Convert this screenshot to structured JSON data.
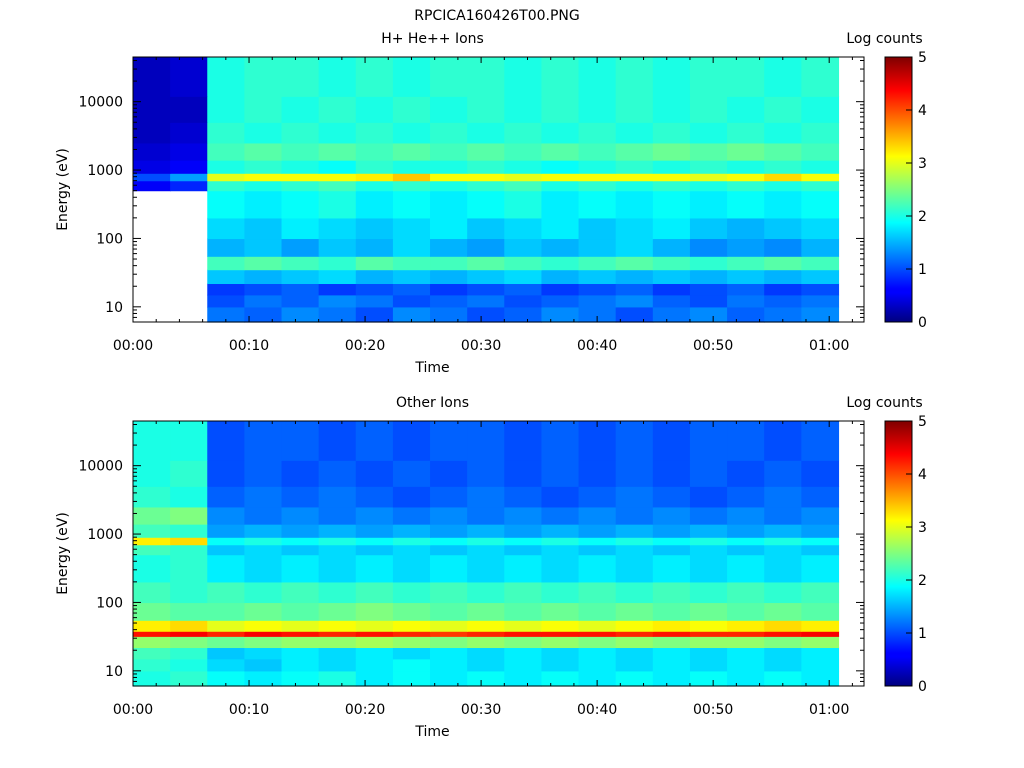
{
  "figure_title": "RPCICA160426T00.PNG",
  "colormap": "jet",
  "chart_data": [
    {
      "type": "heatmap",
      "title": "H+ He++ Ions",
      "xlabel": "Time",
      "ylabel": "Energy (eV)",
      "yscale": "log",
      "ylim": [
        6,
        45000
      ],
      "xlim": [
        "00:00",
        "01:03"
      ],
      "x_ticks": [
        "00:00",
        "00:10",
        "00:20",
        "00:30",
        "00:40",
        "00:50",
        "01:00"
      ],
      "y_ticks": [
        "10",
        "100",
        "1000",
        "10000"
      ],
      "colorbar": {
        "label": "Log counts",
        "range": [
          0,
          5
        ],
        "ticks": [
          "0",
          "1",
          "2",
          "3",
          "4",
          "5"
        ]
      },
      "time_bins_min": [
        0,
        3.2,
        6.4,
        9.6,
        12.8,
        16,
        19.2,
        22.4,
        25.6,
        28.8,
        32,
        35.2,
        38.4,
        41.6,
        44.8,
        48,
        51.2,
        54.4,
        57.6,
        60.8
      ],
      "energy_bins_ev": [
        6,
        10,
        15,
        22,
        35,
        55,
        100,
        200,
        500,
        700,
        900,
        1400,
        2500,
        5000,
        12000,
        45000
      ],
      "log_counts": [
        [
          null,
          null,
          1.2,
          1.1,
          1.3,
          1.2,
          1.0,
          1.3,
          1.2,
          1.0,
          1.1,
          1.3,
          1.2,
          1.0,
          1.2,
          1.3,
          1.1,
          1.2,
          1.3
        ],
        [
          null,
          null,
          1.0,
          1.2,
          1.1,
          1.3,
          1.2,
          1.0,
          1.1,
          1.2,
          1.0,
          1.1,
          1.2,
          1.3,
          1.1,
          1.0,
          1.2,
          1.1,
          1.2
        ],
        [
          null,
          null,
          0.9,
          1.0,
          1.1,
          0.9,
          1.0,
          1.1,
          0.9,
          1.0,
          1.1,
          0.9,
          1.0,
          1.1,
          0.9,
          1.0,
          1.1,
          0.9,
          1.0
        ],
        [
          null,
          null,
          1.6,
          1.5,
          1.6,
          1.7,
          1.5,
          1.6,
          1.5,
          1.6,
          1.7,
          1.5,
          1.6,
          1.5,
          1.6,
          1.5,
          1.6,
          1.5,
          1.6
        ],
        [
          null,
          null,
          2.2,
          2.3,
          2.2,
          2.1,
          2.3,
          2.2,
          2.2,
          2.3,
          2.2,
          2.1,
          2.2,
          2.3,
          2.2,
          2.1,
          2.2,
          2.3,
          2.2
        ],
        [
          null,
          null,
          1.5,
          1.6,
          1.4,
          1.6,
          1.5,
          1.7,
          1.5,
          1.4,
          1.6,
          1.5,
          1.6,
          1.7,
          1.5,
          1.3,
          1.4,
          1.3,
          1.5
        ],
        [
          null,
          null,
          1.7,
          1.6,
          1.8,
          1.7,
          1.6,
          1.7,
          1.8,
          1.6,
          1.7,
          1.8,
          1.6,
          1.7,
          1.8,
          1.6,
          1.5,
          1.6,
          1.7
        ],
        [
          null,
          null,
          1.9,
          1.8,
          1.9,
          2.0,
          1.8,
          1.9,
          1.8,
          1.9,
          2.0,
          1.8,
          1.9,
          1.8,
          1.9,
          1.8,
          1.9,
          1.8,
          1.9
        ],
        [
          0.6,
          0.8,
          2.1,
          2.0,
          2.1,
          2.2,
          2.0,
          2.1,
          2.0,
          2.1,
          2.2,
          2.0,
          2.1,
          2.0,
          2.1,
          2.0,
          2.1,
          2.0,
          2.1
        ],
        [
          1.0,
          1.4,
          3.0,
          3.1,
          3.1,
          3.1,
          3.2,
          3.4,
          3.1,
          3.1,
          3.0,
          3.1,
          3.1,
          3.1,
          3.1,
          3.0,
          3.1,
          3.3,
          3.1
        ],
        [
          0.5,
          0.6,
          2.0,
          2.1,
          2.0,
          1.9,
          2.1,
          2.0,
          2.0,
          2.1,
          2.0,
          1.9,
          2.0,
          2.1,
          2.0,
          2.1,
          2.0,
          2.1,
          2.0
        ],
        [
          0.4,
          0.5,
          2.2,
          2.3,
          2.2,
          2.3,
          2.2,
          2.3,
          2.2,
          2.3,
          2.2,
          2.3,
          2.2,
          2.3,
          2.4,
          2.3,
          2.4,
          2.3,
          2.2
        ],
        [
          0.3,
          0.4,
          2.1,
          2.0,
          2.1,
          2.0,
          2.1,
          2.0,
          2.1,
          2.0,
          2.1,
          2.0,
          2.1,
          2.0,
          2.1,
          2.0,
          2.1,
          2.0,
          2.1
        ],
        [
          0.3,
          0.3,
          2.0,
          2.1,
          2.0,
          2.1,
          2.0,
          2.1,
          2.0,
          2.1,
          2.0,
          2.1,
          2.0,
          2.1,
          2.0,
          2.1,
          2.0,
          2.1,
          2.0
        ],
        [
          0.3,
          0.4,
          2.0,
          2.1,
          2.1,
          2.0,
          2.1,
          2.0,
          2.1,
          2.1,
          2.0,
          2.1,
          2.0,
          2.1,
          2.0,
          2.1,
          2.1,
          2.0,
          2.1
        ]
      ]
    },
    {
      "type": "heatmap",
      "title": "Other Ions",
      "xlabel": "Time",
      "ylabel": "Energy (eV)",
      "yscale": "log",
      "ylim": [
        6,
        45000
      ],
      "xlim": [
        "00:00",
        "01:03"
      ],
      "x_ticks": [
        "00:00",
        "00:10",
        "00:20",
        "00:30",
        "00:40",
        "00:50",
        "01:00"
      ],
      "y_ticks": [
        "10",
        "100",
        "1000",
        "10000"
      ],
      "colorbar": {
        "label": "Log counts",
        "range": [
          0,
          5
        ],
        "ticks": [
          "0",
          "1",
          "2",
          "3",
          "4",
          "5"
        ]
      },
      "time_bins_min": [
        0,
        3.2,
        6.4,
        9.6,
        12.8,
        16,
        19.2,
        22.4,
        25.6,
        28.8,
        32,
        35.2,
        38.4,
        41.6,
        44.8,
        48,
        51.2,
        54.4,
        57.6,
        60.8
      ],
      "energy_bins_ev": [
        6,
        10,
        15,
        22,
        32,
        38,
        55,
        100,
        200,
        500,
        700,
        900,
        1400,
        2500,
        5000,
        12000,
        45000
      ],
      "log_counts": [
        [
          2.0,
          2.1,
          1.9,
          1.8,
          1.9,
          2.0,
          1.8,
          1.9,
          1.8,
          1.9,
          1.8,
          1.9,
          1.8,
          1.9,
          1.8,
          1.9,
          1.8,
          1.9,
          1.8
        ],
        [
          2.1,
          2.0,
          1.7,
          1.6,
          1.8,
          1.7,
          1.8,
          1.9,
          1.8,
          1.7,
          1.8,
          1.7,
          1.8,
          1.7,
          1.8,
          1.7,
          1.8,
          1.7,
          1.8
        ],
        [
          2.2,
          2.1,
          1.6,
          1.7,
          1.8,
          1.7,
          1.8,
          1.7,
          1.8,
          1.7,
          1.8,
          1.7,
          1.8,
          1.7,
          1.8,
          1.7,
          1.8,
          1.7,
          1.8
        ],
        [
          2.6,
          2.5,
          2.4,
          2.5,
          2.6,
          2.6,
          2.7,
          2.6,
          2.5,
          2.6,
          2.5,
          2.6,
          2.5,
          2.6,
          2.5,
          2.6,
          2.6,
          2.5,
          2.6
        ],
        [
          4.3,
          4.4,
          4.2,
          4.4,
          4.3,
          4.2,
          4.3,
          4.2,
          4.1,
          4.2,
          4.3,
          4.3,
          4.3,
          4.2,
          4.3,
          4.2,
          4.2,
          4.3,
          4.4
        ],
        [
          3.2,
          3.3,
          3.0,
          3.1,
          3.0,
          3.1,
          3.0,
          3.1,
          3.0,
          3.1,
          3.0,
          3.1,
          3.0,
          3.1,
          3.2,
          3.1,
          3.2,
          3.3,
          3.2
        ],
        [
          2.4,
          2.3,
          2.3,
          2.4,
          2.3,
          2.4,
          2.5,
          2.4,
          2.3,
          2.4,
          2.3,
          2.4,
          2.3,
          2.4,
          2.3,
          2.4,
          2.3,
          2.4,
          2.3
        ],
        [
          2.2,
          2.1,
          2.2,
          2.1,
          2.2,
          2.1,
          2.2,
          2.1,
          2.2,
          2.1,
          2.2,
          2.1,
          2.2,
          2.1,
          2.2,
          2.1,
          2.2,
          2.1,
          2.2
        ],
        [
          2.0,
          2.1,
          1.8,
          1.7,
          1.8,
          1.7,
          1.8,
          1.7,
          1.8,
          1.7,
          1.8,
          1.7,
          1.8,
          1.7,
          1.8,
          1.7,
          1.8,
          1.7,
          1.8
        ],
        [
          2.2,
          2.1,
          1.6,
          1.7,
          1.6,
          1.7,
          1.6,
          1.7,
          1.6,
          1.7,
          1.6,
          1.7,
          1.6,
          1.7,
          1.6,
          1.7,
          1.6,
          1.7,
          1.6
        ],
        [
          3.2,
          3.3,
          1.9,
          2.0,
          1.9,
          2.0,
          1.9,
          2.0,
          1.9,
          2.0,
          1.9,
          2.0,
          1.9,
          2.0,
          1.9,
          2.0,
          1.9,
          2.0,
          1.9
        ],
        [
          2.2,
          2.1,
          1.4,
          1.5,
          1.4,
          1.5,
          1.4,
          1.5,
          1.4,
          1.5,
          1.4,
          1.5,
          1.4,
          1.5,
          1.4,
          1.5,
          1.4,
          1.5,
          1.4
        ],
        [
          2.4,
          2.5,
          1.3,
          1.2,
          1.3,
          1.2,
          1.3,
          1.2,
          1.3,
          1.2,
          1.3,
          1.2,
          1.3,
          1.2,
          1.3,
          1.2,
          1.3,
          1.2,
          1.3
        ],
        [
          2.1,
          2.0,
          1.1,
          1.2,
          1.1,
          1.2,
          1.1,
          1.0,
          1.1,
          1.2,
          1.1,
          1.0,
          1.1,
          1.2,
          1.1,
          1.0,
          1.1,
          1.2,
          1.1
        ],
        [
          2.0,
          2.1,
          1.0,
          1.1,
          1.0,
          1.1,
          1.0,
          1.1,
          1.0,
          1.1,
          1.0,
          1.1,
          1.0,
          1.1,
          1.0,
          1.1,
          1.0,
          1.1,
          1.0
        ],
        [
          2.0,
          2.0,
          1.0,
          1.1,
          1.1,
          1.0,
          1.1,
          1.0,
          1.1,
          1.1,
          1.0,
          1.1,
          1.0,
          1.1,
          1.0,
          1.1,
          1.1,
          1.0,
          1.1
        ]
      ]
    }
  ]
}
